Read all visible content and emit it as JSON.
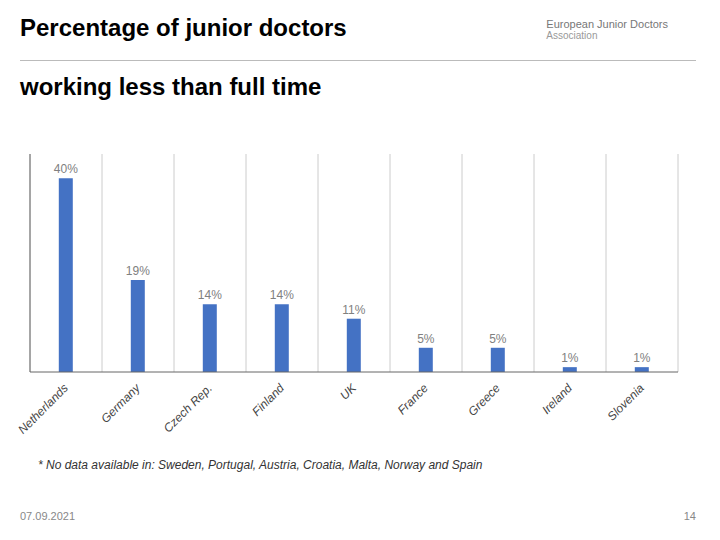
{
  "chart_data": {
    "type": "bar",
    "title": "Percentage of junior doctors",
    "subtitle": "working less than full time",
    "categories": [
      "Netherlands",
      "Germany",
      "Czech Rep.",
      "Finland",
      "UK",
      "France",
      "Greece",
      "Ireland",
      "Slovenia"
    ],
    "values": [
      40,
      19,
      14,
      14,
      11,
      5,
      5,
      1,
      1
    ],
    "value_labels": [
      "40%",
      "19%",
      "14%",
      "14%",
      "11%",
      "5%",
      "5%",
      "1%",
      "1%"
    ],
    "data_labels": true,
    "color": "#4472C4",
    "ylim": [
      0,
      45
    ],
    "tick_labels": "x",
    "grid": true,
    "annotations": [
      "* No data available in: Sweden, Portugal, Austria, Croatia, Malta, Norway and Spain",
      "07.09.2021",
      "14",
      "European Junior Doctors",
      "Association"
    ]
  }
}
